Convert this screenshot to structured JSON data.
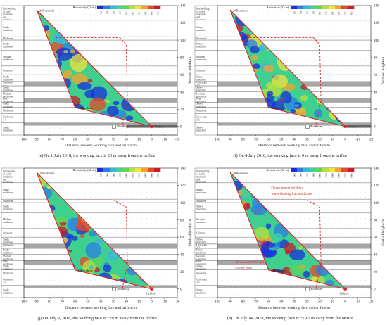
{
  "common": {
    "xlabel": "Distance between working face and orifice/m",
    "ylabel": "Vertical height/m",
    "colorbar_title": "Resistivity/(Ω·m)",
    "colorbar_ticks": [
      "200",
      "400",
      "600",
      "800",
      "1000",
      "1200",
      "1400",
      "1600",
      "1800",
      "1900"
    ],
    "colormap": [
      "#1a2fd9",
      "#2b7fe3",
      "#38b6e6",
      "#3fd39a",
      "#5fd45a",
      "#b8e03c",
      "#f4e33a",
      "#f5a42a",
      "#e8472a",
      "#c81e2a"
    ],
    "borehole_2": "2#Borehole",
    "borehole_3": "3#Borehole",
    "roadway": "Roadway",
    "orifice": "Orifice",
    "strata": [
      "Interbedding of sandy mudstone and mudstone",
      "Sandy mudstone",
      "Mudstone",
      "Sandy mudstone",
      "Medium sandstone",
      "Gritstone",
      "Sandy mudstone",
      "Coal seam 2-2",
      "Sandy mudstone",
      "Medium sandstone",
      "Fine sandstone",
      "Sandy mudstone",
      "Mudstone",
      "Coal seam 3-1",
      "Sandy mudstone"
    ]
  },
  "colors": {
    "triangle_edge": "#e0222a",
    "dashed_line": "#d9262d",
    "coal_band": "#8a8a8a",
    "grid": "#bdbdbd"
  },
  "captions": [
    "(e) On 1 July 2018, the working face is 20 m away from the orifice",
    "(f) On 4 July 2018, the working face is 0 m away from the orifice",
    "(g) On July 9, 2018, the working face is −29 m away from the orifice",
    "(h) On July 14, 2018, the working face is −79.5 m away from the orifice"
  ],
  "annotations": {
    "fractured": "Development height of water-flowing fractured zone",
    "caving": "Development height of caving zone"
  },
  "chart_data": [
    {
      "type": "heatmap",
      "xlabel": "Distance between working face and orifice/m",
      "ylabel": "Vertical height/m",
      "xlim": [
        100,
        -20
      ],
      "ylim": [
        -10,
        140
      ],
      "xticks": [
        100,
        90,
        80,
        70,
        60,
        50,
        40,
        30,
        20,
        10,
        0,
        -10,
        -20
      ],
      "yticks": [
        0,
        20,
        40,
        60,
        80,
        100,
        120,
        140
      ],
      "working_face_m": 20,
      "fracture_line": [
        [
          75,
          103
        ],
        [
          25,
          103
        ],
        [
          20,
          95
        ],
        [
          19,
          30
        ],
        [
          23,
          0
        ]
      ],
      "grey_bar": [
        20,
        -20
      ]
    },
    {
      "type": "heatmap",
      "xlabel": "Distance between working face and orifice/m",
      "ylabel": "Vertical height/m",
      "xlim": [
        100,
        -20
      ],
      "ylim": [
        -10,
        140
      ],
      "xticks": [
        100,
        90,
        80,
        70,
        60,
        50,
        40,
        30,
        20,
        10,
        0,
        -10,
        -20
      ],
      "yticks": [
        0,
        20,
        40,
        60,
        80,
        100,
        120,
        140
      ],
      "working_face_m": 0,
      "fracture_line": [
        [
          75,
          103
        ],
        [
          25,
          103
        ],
        [
          20,
          95
        ],
        [
          19,
          30
        ],
        [
          23,
          0
        ]
      ],
      "grey_bar": [
        0,
        -20
      ]
    },
    {
      "type": "heatmap",
      "xlabel": "Distance between working face and orifice/m",
      "ylabel": "Vertical height/m",
      "xlim": [
        100,
        -20
      ],
      "ylim": [
        -10,
        140
      ],
      "xticks": [
        100,
        90,
        80,
        70,
        60,
        50,
        40,
        30,
        20,
        10,
        0,
        -10,
        -20
      ],
      "yticks": [
        0,
        20,
        40,
        60,
        80,
        100,
        120,
        140
      ],
      "working_face_m": -29,
      "fracture_line": [
        [
          80,
          103
        ],
        [
          30,
          103
        ],
        [
          20,
          95
        ],
        [
          19,
          30
        ],
        [
          23,
          0
        ]
      ],
      "grey_bar": null
    },
    {
      "type": "heatmap",
      "xlabel": "Distance between working face and orifice/m",
      "ylabel": "Vertical height/m",
      "xlim": [
        100,
        -20
      ],
      "ylim": [
        -10,
        140
      ],
      "xticks": [
        100,
        90,
        80,
        70,
        60,
        50,
        40,
        30,
        20,
        10,
        0,
        -10,
        -20
      ],
      "yticks": [
        0,
        20,
        40,
        60,
        80,
        100,
        120,
        140
      ],
      "working_face_m": -79.5,
      "fracture_line": [
        [
          80,
          103
        ],
        [
          30,
          103
        ],
        [
          20,
          95
        ],
        [
          19,
          30
        ],
        [
          23,
          0
        ]
      ],
      "grey_bar": null
    }
  ]
}
